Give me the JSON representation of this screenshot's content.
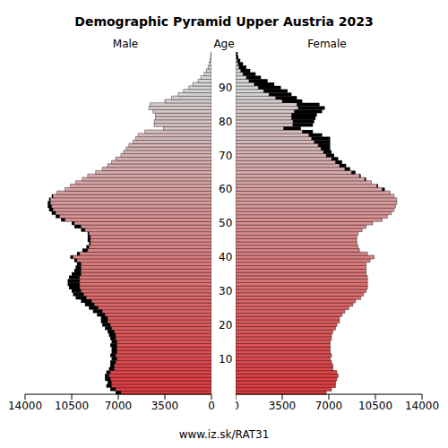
{
  "chart_data": {
    "type": "bar",
    "title": "Demographic Pyramid Upper Austria 2023",
    "orientation": "horizontal",
    "stacked": false,
    "ylabel": "Age",
    "footer": "www.iz.sk/RAT31",
    "categories": [
      null,
      null,
      null,
      null,
      null,
      null,
      null,
      null,
      null,
      null,
      "10",
      null,
      null,
      null,
      null,
      null,
      null,
      null,
      null,
      null,
      "20",
      null,
      null,
      null,
      null,
      null,
      null,
      null,
      null,
      null,
      "30",
      null,
      null,
      null,
      null,
      null,
      null,
      null,
      null,
      null,
      "40",
      null,
      null,
      null,
      null,
      null,
      null,
      null,
      null,
      null,
      "50",
      null,
      null,
      null,
      null,
      null,
      null,
      null,
      null,
      null,
      "60",
      null,
      null,
      null,
      null,
      null,
      null,
      null,
      null,
      null,
      "70",
      null,
      null,
      null,
      null,
      null,
      null,
      null,
      null,
      null,
      "80",
      null,
      null,
      null,
      null,
      null,
      null,
      null,
      null,
      null,
      "90",
      null,
      null,
      null,
      null,
      null,
      null,
      null,
      null,
      null,
      null
    ],
    "series": [
      {
        "name": "Male",
        "values": [
          7200,
          7600,
          7900,
          7800,
          8000,
          8000,
          7900,
          7700,
          7600,
          7600,
          7500,
          7600,
          7500,
          7500,
          7600,
          7500,
          7600,
          7700,
          7800,
          8000,
          8200,
          8300,
          8300,
          8600,
          8900,
          9200,
          9500,
          9800,
          10200,
          10400,
          10500,
          10700,
          10800,
          10800,
          10700,
          10500,
          10300,
          10200,
          10100,
          10300,
          10600,
          10100,
          9700,
          9400,
          9200,
          9300,
          9300,
          9300,
          9800,
          10300,
          10500,
          11300,
          11700,
          12000,
          12200,
          12300,
          12300,
          12200,
          12000,
          11600,
          11000,
          10600,
          10200,
          9700,
          9300,
          8700,
          8200,
          7800,
          7500,
          7200,
          6800,
          6600,
          6400,
          6200,
          5900,
          5700,
          5500,
          5000,
          3600,
          4300,
          4300,
          4200,
          4200,
          4400,
          4700,
          4600,
          3500,
          3000,
          2500,
          2100,
          1700,
          1400,
          1000,
          800,
          550,
          380,
          250,
          170,
          110,
          60,
          50
        ]
      },
      {
        "name": "Female",
        "values": [
          6800,
          7200,
          7500,
          7500,
          7600,
          7700,
          7600,
          7300,
          7300,
          7200,
          7100,
          7200,
          7100,
          7100,
          7100,
          7100,
          7200,
          7200,
          7300,
          7500,
          7600,
          7800,
          7800,
          8000,
          8200,
          8500,
          8800,
          9000,
          9400,
          9600,
          9800,
          9900,
          9900,
          9900,
          9900,
          9800,
          9800,
          9800,
          9800,
          10100,
          10400,
          9900,
          9300,
          9200,
          9100,
          9100,
          9100,
          9200,
          9500,
          9800,
          10300,
          11000,
          11400,
          11700,
          11900,
          12000,
          12100,
          12100,
          11900,
          11600,
          11200,
          10700,
          10200,
          9800,
          9400,
          9000,
          8600,
          8300,
          8000,
          7700,
          7400,
          7200,
          7100,
          7100,
          7100,
          7100,
          6500,
          5800,
          4900,
          5800,
          5900,
          6000,
          6100,
          6500,
          6700,
          6300,
          5000,
          4600,
          4200,
          3900,
          3400,
          2900,
          2400,
          1900,
          1500,
          1100,
          800,
          550,
          350,
          200,
          150
        ]
      }
    ],
    "xlim": [
      0,
      14000
    ],
    "xticks": [
      0,
      3500,
      7000,
      10500,
      14000
    ]
  }
}
